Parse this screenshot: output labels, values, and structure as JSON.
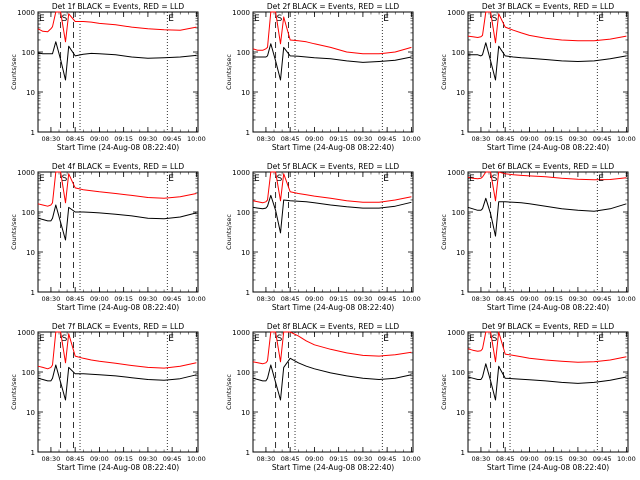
{
  "figure": {
    "time_axis_label": "Start Time (24-Aug-08 08:22:40)",
    "y_axis_label": "Counts/sec",
    "x_tick_labels": [
      "08:30",
      "08:45",
      "09:00",
      "09:15",
      "09:30",
      "09:45",
      "10:00"
    ],
    "y_tick_labels": [
      "1",
      "10",
      "100",
      "1000"
    ],
    "marker_labels": [
      "E",
      "S",
      "E"
    ],
    "colors": {
      "events": "#000000",
      "lld": "#ff0000",
      "frame": "#000000",
      "background": "#ffffff"
    }
  },
  "chart_data": [
    {
      "type": "line",
      "title": "Det 1f BLACK = Events, RED = LLD",
      "xlabel": "Start Time (24-Aug-08 08:22:40)",
      "ylabel": "Counts/sec",
      "yscale": "log",
      "ylim": [
        1,
        1000
      ],
      "x": [
        "08:22",
        "08:25",
        "08:28",
        "08:30",
        "08:31",
        "08:33",
        "08:36",
        "08:39",
        "08:41",
        "08:45",
        "08:50",
        "08:55",
        "09:00",
        "09:10",
        "09:20",
        "09:30",
        "09:40",
        "09:50",
        "10:00"
      ],
      "series": [
        {
          "name": "BLACK = Events",
          "color": "#000000",
          "values": [
            95,
            90,
            90,
            90,
            90,
            180,
            65,
            20,
            140,
            80,
            88,
            92,
            90,
            85,
            75,
            70,
            72,
            75,
            82
          ]
        },
        {
          "name": "RED = LLD",
          "color": "#ff0000",
          "values": [
            380,
            330,
            320,
            380,
            430,
            1000,
            1000,
            180,
            900,
            580,
            580,
            560,
            520,
            480,
            420,
            380,
            360,
            350,
            420
          ]
        }
      ],
      "markers": [
        {
          "label": "E",
          "x": "08:22"
        },
        {
          "label": "S",
          "x": "08:36"
        },
        {
          "label": "E",
          "x": "09:42"
        }
      ]
    },
    {
      "type": "line",
      "title": "Det 2f BLACK = Events, RED = LLD",
      "xlabel": "Start Time (24-Aug-08 08:22:40)",
      "ylabel": "Counts/sec",
      "yscale": "log",
      "ylim": [
        1,
        1000
      ],
      "x": [
        "08:22",
        "08:25",
        "08:28",
        "08:30",
        "08:31",
        "08:33",
        "08:36",
        "08:39",
        "08:41",
        "08:45",
        "08:50",
        "08:55",
        "09:00",
        "09:10",
        "09:20",
        "09:30",
        "09:40",
        "09:50",
        "10:00"
      ],
      "series": [
        {
          "name": "BLACK = Events",
          "color": "#000000",
          "values": [
            75,
            75,
            75,
            75,
            80,
            160,
            60,
            20,
            130,
            80,
            78,
            75,
            72,
            68,
            60,
            55,
            58,
            62,
            75
          ]
        },
        {
          "name": "RED = LLD",
          "color": "#ff0000",
          "values": [
            120,
            110,
            110,
            120,
            130,
            1000,
            1000,
            160,
            750,
            200,
            190,
            180,
            160,
            130,
            100,
            90,
            90,
            100,
            130
          ]
        }
      ],
      "markers": [
        {
          "label": "E",
          "x": "08:22"
        },
        {
          "label": "S",
          "x": "08:36"
        },
        {
          "label": "E",
          "x": "09:42"
        }
      ]
    },
    {
      "type": "line",
      "title": "Det 3f BLACK = Events, RED = LLD",
      "xlabel": "Start Time (24-Aug-08 08:22:40)",
      "ylabel": "Counts/sec",
      "yscale": "log",
      "ylim": [
        1,
        1000
      ],
      "x": [
        "08:22",
        "08:25",
        "08:28",
        "08:30",
        "08:31",
        "08:33",
        "08:36",
        "08:39",
        "08:41",
        "08:45",
        "08:50",
        "08:55",
        "09:00",
        "09:10",
        "09:20",
        "09:30",
        "09:40",
        "09:50",
        "10:00"
      ],
      "series": [
        {
          "name": "BLACK = Events",
          "color": "#000000",
          "values": [
            85,
            85,
            85,
            80,
            85,
            170,
            60,
            20,
            140,
            80,
            75,
            72,
            70,
            65,
            60,
            58,
            60,
            68,
            80
          ]
        },
        {
          "name": "RED = LLD",
          "color": "#ff0000",
          "values": [
            250,
            240,
            230,
            240,
            260,
            1000,
            1000,
            170,
            900,
            420,
            350,
            300,
            260,
            220,
            200,
            190,
            190,
            210,
            250
          ]
        }
      ],
      "markers": [
        {
          "label": "E",
          "x": "08:22"
        },
        {
          "label": "S",
          "x": "08:36"
        },
        {
          "label": "E",
          "x": "09:42"
        }
      ]
    },
    {
      "type": "line",
      "title": "Det 4f BLACK = Events, RED = LLD",
      "xlabel": "Start Time (24-Aug-08 08:22:40)",
      "ylabel": "Counts/sec",
      "yscale": "log",
      "ylim": [
        1,
        1000
      ],
      "x": [
        "08:22",
        "08:25",
        "08:28",
        "08:30",
        "08:31",
        "08:33",
        "08:36",
        "08:39",
        "08:41",
        "08:45",
        "08:50",
        "08:55",
        "09:00",
        "09:10",
        "09:20",
        "09:30",
        "09:40",
        "09:50",
        "10:00"
      ],
      "series": [
        {
          "name": "BLACK = Events",
          "color": "#000000",
          "values": [
            70,
            65,
            60,
            60,
            70,
            150,
            55,
            20,
            130,
            100,
            100,
            98,
            95,
            88,
            80,
            70,
            68,
            75,
            95
          ]
        },
        {
          "name": "RED = LLD",
          "color": "#ff0000",
          "values": [
            160,
            150,
            140,
            150,
            170,
            1000,
            1000,
            170,
            900,
            400,
            360,
            340,
            320,
            290,
            260,
            230,
            220,
            240,
            290
          ]
        }
      ],
      "markers": [
        {
          "label": "E",
          "x": "08:22"
        },
        {
          "label": "S",
          "x": "08:36"
        },
        {
          "label": "E",
          "x": "09:42"
        }
      ]
    },
    {
      "type": "line",
      "title": "Det 5f BLACK = Events, RED = LLD",
      "xlabel": "Start Time (24-Aug-08 08:22:40)",
      "ylabel": "Counts/sec",
      "yscale": "log",
      "ylim": [
        1,
        1000
      ],
      "x": [
        "08:22",
        "08:25",
        "08:28",
        "08:30",
        "08:31",
        "08:33",
        "08:36",
        "08:39",
        "08:41",
        "08:45",
        "08:50",
        "08:55",
        "09:00",
        "09:10",
        "09:20",
        "09:30",
        "09:40",
        "09:50",
        "10:00"
      ],
      "series": [
        {
          "name": "BLACK = Events",
          "color": "#000000",
          "values": [
            130,
            125,
            120,
            125,
            140,
            260,
            110,
            30,
            200,
            190,
            185,
            180,
            170,
            150,
            135,
            125,
            125,
            140,
            175
          ]
        },
        {
          "name": "RED = LLD",
          "color": "#ff0000",
          "values": [
            190,
            180,
            170,
            180,
            200,
            1000,
            1000,
            190,
            900,
            320,
            290,
            270,
            250,
            220,
            190,
            175,
            175,
            200,
            240
          ]
        }
      ],
      "markers": [
        {
          "label": "E",
          "x": "08:22"
        },
        {
          "label": "S",
          "x": "08:36"
        },
        {
          "label": "E",
          "x": "09:42"
        }
      ]
    },
    {
      "type": "line",
      "title": "Det 6f BLACK = Events, RED = LLD",
      "xlabel": "Start Time (24-Aug-08 08:22:40)",
      "ylabel": "Counts/sec",
      "yscale": "log",
      "ylim": [
        1,
        1000
      ],
      "x": [
        "08:22",
        "08:25",
        "08:28",
        "08:30",
        "08:31",
        "08:33",
        "08:36",
        "08:39",
        "08:41",
        "08:45",
        "08:50",
        "08:55",
        "09:00",
        "09:10",
        "09:20",
        "09:30",
        "09:40",
        "09:50",
        "10:00"
      ],
      "series": [
        {
          "name": "BLACK = Events",
          "color": "#000000",
          "values": [
            130,
            120,
            110,
            110,
            120,
            220,
            90,
            25,
            180,
            180,
            175,
            170,
            160,
            140,
            120,
            110,
            105,
            120,
            160
          ]
        },
        {
          "name": "RED = LLD",
          "color": "#ff0000",
          "values": [
            740,
            700,
            680,
            700,
            750,
            1000,
            1000,
            190,
            1000,
            900,
            850,
            820,
            800,
            760,
            700,
            660,
            640,
            650,
            720
          ]
        }
      ],
      "markers": [
        {
          "label": "E",
          "x": "08:22"
        },
        {
          "label": "S",
          "x": "08:36"
        },
        {
          "label": "E",
          "x": "09:42"
        }
      ]
    },
    {
      "type": "line",
      "title": "Det 7f BLACK = Events, RED = LLD",
      "xlabel": "Start Time (24-Aug-08 08:22:40)",
      "ylabel": "Counts/sec",
      "yscale": "log",
      "ylim": [
        1,
        1000
      ],
      "x": [
        "08:22",
        "08:25",
        "08:28",
        "08:30",
        "08:31",
        "08:33",
        "08:36",
        "08:39",
        "08:41",
        "08:45",
        "08:50",
        "08:55",
        "09:00",
        "09:10",
        "09:20",
        "09:30",
        "09:40",
        "09:50",
        "10:00"
      ],
      "series": [
        {
          "name": "BLACK = Events",
          "color": "#000000",
          "values": [
            70,
            65,
            60,
            60,
            70,
            150,
            55,
            20,
            130,
            90,
            90,
            88,
            85,
            80,
            72,
            65,
            62,
            68,
            85
          ]
        },
        {
          "name": "RED = LLD",
          "color": "#ff0000",
          "values": [
            140,
            130,
            120,
            130,
            150,
            1000,
            1000,
            170,
            900,
            250,
            220,
            200,
            185,
            165,
            145,
            130,
            125,
            140,
            170
          ]
        }
      ],
      "markers": [
        {
          "label": "E",
          "x": "08:22"
        },
        {
          "label": "S",
          "x": "08:36"
        },
        {
          "label": "E",
          "x": "09:42"
        }
      ]
    },
    {
      "type": "line",
      "title": "Det 8f BLACK = Events, RED = LLD",
      "xlabel": "Start Time (24-Aug-08 08:22:40)",
      "ylabel": "Counts/sec",
      "yscale": "log",
      "ylim": [
        1,
        1000
      ],
      "x": [
        "08:22",
        "08:25",
        "08:28",
        "08:30",
        "08:31",
        "08:33",
        "08:36",
        "08:39",
        "08:41",
        "08:45",
        "08:50",
        "08:55",
        "09:00",
        "09:10",
        "09:20",
        "09:30",
        "09:40",
        "09:50",
        "10:00"
      ],
      "series": [
        {
          "name": "BLACK = Events",
          "color": "#000000",
          "values": [
            70,
            65,
            60,
            60,
            70,
            150,
            55,
            20,
            130,
            220,
            170,
            140,
            120,
            95,
            80,
            70,
            65,
            70,
            85
          ]
        },
        {
          "name": "RED = LLD",
          "color": "#ff0000",
          "values": [
            180,
            170,
            160,
            170,
            190,
            1000,
            1000,
            180,
            1000,
            1000,
            800,
            600,
            480,
            370,
            300,
            260,
            250,
            270,
            310
          ]
        }
      ],
      "markers": [
        {
          "label": "E",
          "x": "08:22"
        },
        {
          "label": "S",
          "x": "08:36"
        },
        {
          "label": "E",
          "x": "09:42"
        }
      ]
    },
    {
      "type": "line",
      "title": "Det 9f BLACK = Events, RED = LLD",
      "xlabel": "Start Time (24-Aug-08 08:22:40)",
      "ylabel": "Counts/sec",
      "yscale": "log",
      "ylim": [
        1,
        1000
      ],
      "x": [
        "08:22",
        "08:25",
        "08:28",
        "08:30",
        "08:31",
        "08:33",
        "08:36",
        "08:39",
        "08:41",
        "08:45",
        "08:50",
        "08:55",
        "09:00",
        "09:10",
        "09:20",
        "09:30",
        "09:40",
        "09:50",
        "10:00"
      ],
      "series": [
        {
          "name": "BLACK = Events",
          "color": "#000000",
          "values": [
            75,
            70,
            65,
            65,
            75,
            160,
            60,
            20,
            140,
            70,
            68,
            66,
            64,
            60,
            55,
            52,
            55,
            62,
            75
          ]
        },
        {
          "name": "RED = LLD",
          "color": "#ff0000",
          "values": [
            380,
            350,
            330,
            340,
            380,
            1000,
            1000,
            180,
            1000,
            280,
            260,
            240,
            220,
            200,
            185,
            175,
            180,
            200,
            240
          ]
        }
      ],
      "markers": [
        {
          "label": "E",
          "x": "08:22"
        },
        {
          "label": "S",
          "x": "08:36"
        },
        {
          "label": "E",
          "x": "09:42"
        }
      ]
    }
  ]
}
